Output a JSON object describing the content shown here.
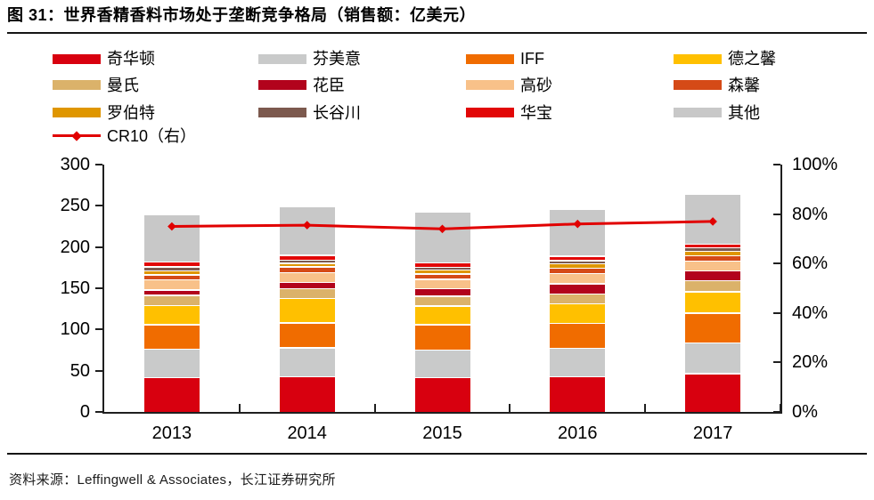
{
  "figure": {
    "number_label": "图 31",
    "title": "图 31：世界香精香料市场处于垄断竞争格局（销售额：亿美元）",
    "source": "资料来源：Leffingwell & Associates，长江证券研究所"
  },
  "chart_data": {
    "type": "bar",
    "stacked": true,
    "title": "世界香精香料市场处于垄断竞争格局（销售额：亿美元）",
    "unit": "亿美元",
    "grid": false,
    "legend_position": "top",
    "categories": [
      "2013",
      "2014",
      "2015",
      "2016",
      "2017"
    ],
    "series": [
      {
        "name": "奇华顿",
        "color": "#d8000f",
        "values": [
          42.5,
          43.5,
          42.5,
          43.5,
          47
        ]
      },
      {
        "name": "芬美意",
        "color": "#c9caca",
        "values": [
          34.5,
          35,
          33.5,
          34,
          37.5
        ]
      },
      {
        "name": "IFF",
        "color": "#f06c00",
        "values": [
          29.5,
          30,
          30.5,
          30.5,
          36
        ]
      },
      {
        "name": "德之馨",
        "color": "#ffc000",
        "values": [
          23.5,
          30,
          22.5,
          23.5,
          26
        ]
      },
      {
        "name": "曼氏",
        "color": "#dbb26a",
        "values": [
          12,
          12,
          12,
          12.5,
          13.5
        ]
      },
      {
        "name": "花臣",
        "color": "#b2031c",
        "values": [
          6.5,
          7,
          9,
          12,
          12
        ]
      },
      {
        "name": "高砂",
        "color": "#f8c189",
        "values": [
          12.5,
          12,
          11.5,
          12.5,
          11.5
        ]
      },
      {
        "name": "森馨",
        "color": "#d54a17",
        "values": [
          6,
          7,
          6.5,
          6.5,
          6.5
        ]
      },
      {
        "name": "罗伯特",
        "color": "#df9600",
        "values": [
          5,
          4.5,
          4.5,
          5.5,
          5.5
        ]
      },
      {
        "name": "长谷川",
        "color": "#7c594e",
        "values": [
          4.5,
          4,
          3.5,
          3.5,
          4
        ]
      },
      {
        "name": "华宝",
        "color": "#e20707",
        "values": [
          6,
          5.5,
          5.5,
          5.5,
          4.5
        ]
      },
      {
        "name": "其他",
        "color": "#c8c8c8",
        "values": [
          56.5,
          58,
          60,
          56,
          59
        ]
      }
    ],
    "bar_totals_estimated": [
      239,
      248.5,
      241.5,
      245.5,
      263
    ],
    "line_series": {
      "name": "CR10（右）",
      "color": "#e10000",
      "axis": "right",
      "marker": "diamond",
      "values_percent": [
        75,
        75.5,
        74,
        76,
        77
      ]
    },
    "left_axis": {
      "min": 0,
      "max": 300,
      "step": 50,
      "tick_labels": [
        "300",
        "250",
        "200",
        "150",
        "100",
        "50",
        "0"
      ]
    },
    "right_axis": {
      "min_percent": 0,
      "max_percent": 100,
      "step_percent": 20,
      "tick_labels": [
        "100%",
        "80%",
        "60%",
        "40%",
        "20%",
        "0%"
      ]
    }
  }
}
